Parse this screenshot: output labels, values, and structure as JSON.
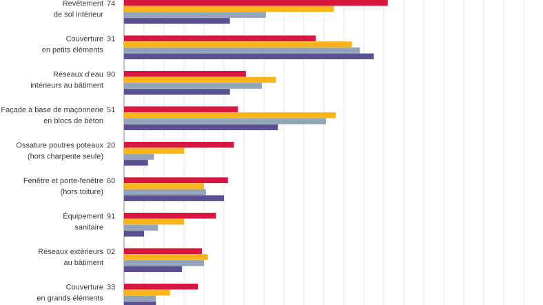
{
  "chart_data": {
    "type": "bar",
    "orientation": "horizontal",
    "grid": true,
    "xlim": [
      0,
      21
    ],
    "categories": [
      {
        "code": "74",
        "lines": [
          "Revêtement",
          "de sol intérieur"
        ]
      },
      {
        "code": "31",
        "lines": [
          "Couverture",
          "en petits éléments"
        ]
      },
      {
        "code": "90",
        "lines": [
          "Réseaux d'eau",
          "intérieurs au bâtiment"
        ]
      },
      {
        "code": "51",
        "lines": [
          "Façade à base de maçonnerie",
          "en blocs de béton"
        ]
      },
      {
        "code": "20",
        "lines": [
          "Ossature poutres poteaux",
          "(hors charpente seule)"
        ]
      },
      {
        "code": "60",
        "lines": [
          "Fenêtre et porte-fenêtre",
          "(hors toiture)"
        ]
      },
      {
        "code": "91",
        "lines": [
          "Équipement",
          "sanitaire"
        ]
      },
      {
        "code": "02",
        "lines": [
          "Réseaux extérieurs",
          "au bâtiment"
        ]
      },
      {
        "code": "33",
        "lines": [
          "Couverture",
          "en grands éléments"
        ]
      }
    ],
    "series": [
      {
        "color": "#d6173f",
        "values": [
          13.2,
          9.6,
          6.1,
          5.7,
          5.5,
          5.2,
          4.6,
          3.9,
          3.7
        ]
      },
      {
        "color": "#fbb41a",
        "values": [
          10.5,
          11.4,
          7.6,
          10.6,
          3.0,
          4.0,
          3.0,
          4.2,
          2.3
        ]
      },
      {
        "color": "#93a5b8",
        "values": [
          7.1,
          11.8,
          6.9,
          10.1,
          1.5,
          4.1,
          1.7,
          4.0,
          1.6
        ]
      },
      {
        "color": "#5b5191",
        "values": [
          5.3,
          12.5,
          5.3,
          7.7,
          1.2,
          5.0,
          1.0,
          2.9,
          1.6
        ]
      }
    ]
  }
}
